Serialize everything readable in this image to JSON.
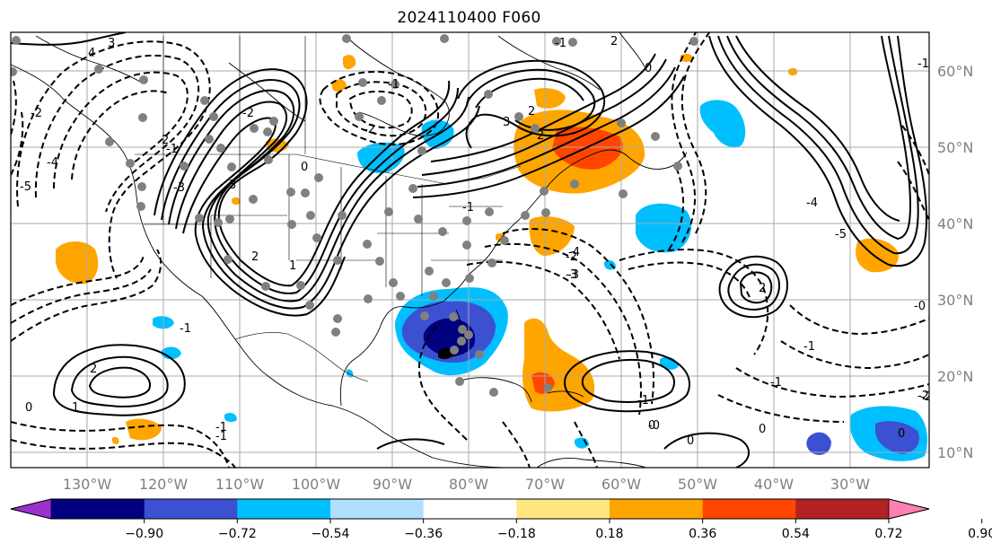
{
  "title": "2024110400 F060",
  "map": {
    "lon_range": [
      -140,
      -20
    ],
    "lat_range": [
      8,
      65
    ],
    "lat_labels": [
      "10°N",
      "20°N",
      "30°N",
      "40°N",
      "50°N",
      "60°N"
    ],
    "lon_labels": [
      "130°W",
      "120°W",
      "110°W",
      "100°W",
      "90°W",
      "80°W",
      "70°W",
      "60°W",
      "50°W",
      "40°W",
      "30°W"
    ],
    "contour_labels": [
      "4",
      "3",
      "2",
      "3",
      "-2",
      "2",
      "0",
      "-2",
      "-1",
      "2",
      "2",
      "-1",
      "2",
      "0",
      "1",
      "-1",
      "-3",
      "-4",
      "-5",
      "-2",
      "-1",
      "0",
      "-2",
      "-1",
      "0",
      "-1",
      "0",
      "-1",
      "2",
      "-3",
      "-4",
      "-5",
      "-1",
      "-2",
      "3",
      "-4",
      "-3",
      "1",
      "2",
      "-1",
      "0",
      "-2",
      "-1",
      "0",
      "-1",
      "-0",
      "-0"
    ],
    "colors": {
      "neg_090": "#9932cc",
      "neg_072": "#000080",
      "neg_054": "#3c50d2",
      "neg_036": "#00bfff",
      "neg_018": "#b0e0ff",
      "pos_018": "#ffe680",
      "pos_036": "#ffa500",
      "pos_054": "#ff4500",
      "pos_072": "#b22222",
      "pos_090": "#ff80b0",
      "station_dot": "#808080"
    }
  },
  "colorbar": {
    "ticks": [
      "−0.90",
      "−0.72",
      "−0.54",
      "−0.36",
      "−0.18",
      "0.18",
      "0.36",
      "0.54",
      "0.72",
      "0.90"
    ],
    "bins": [
      {
        "name": "below-neg-090",
        "color": "#9932cc"
      },
      {
        "name": "neg-090-to-neg-072",
        "color": "#000080"
      },
      {
        "name": "neg-072-to-neg-054",
        "color": "#3c50d2"
      },
      {
        "name": "neg-054-to-neg-036",
        "color": "#00bfff"
      },
      {
        "name": "neg-036-to-neg-018",
        "color": "#b0e0ff"
      },
      {
        "name": "neg-018-to-pos-018",
        "color": "#ffffff"
      },
      {
        "name": "pos-018-to-pos-036",
        "color": "#ffe680"
      },
      {
        "name": "pos-036-to-pos-054",
        "color": "#ffa500"
      },
      {
        "name": "pos-054-to-pos-072",
        "color": "#ff4500"
      },
      {
        "name": "pos-072-to-pos-090",
        "color": "#b22222"
      },
      {
        "name": "above-pos-090",
        "color": "#ff80b0"
      }
    ]
  }
}
